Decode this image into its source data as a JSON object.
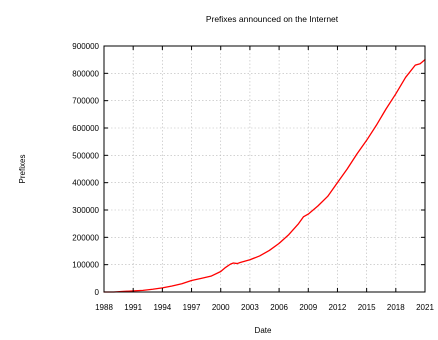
{
  "colors": {
    "series": "#ff0000",
    "frame": "#000000",
    "grid": "#b8b8b8"
  },
  "chart_data": {
    "type": "line",
    "title": "Prefixes announced on the Internet",
    "xlabel": "Date",
    "ylabel": "Prefixes",
    "xlim": [
      1988,
      2021
    ],
    "ylim": [
      0,
      900000
    ],
    "grid": true,
    "x_ticks": [
      1988,
      1991,
      1994,
      1997,
      2000,
      2003,
      2006,
      2009,
      2012,
      2015,
      2018,
      2021
    ],
    "x_tick_labels": [
      "1988",
      "1991",
      "1994",
      "1997",
      "2000",
      "2003",
      "2006",
      "2009",
      "2012",
      "2015",
      "2018",
      "2021"
    ],
    "y_ticks": [
      0,
      100000,
      200000,
      300000,
      400000,
      500000,
      600000,
      700000,
      800000,
      900000
    ],
    "y_tick_labels": [
      "0",
      "100000",
      "200000",
      "300000",
      "400000",
      "500000",
      "600000",
      "700000",
      "800000",
      "900000"
    ],
    "series": [
      {
        "color": "#ff0000",
        "x": [
          1988,
          1989,
          1990,
          1991,
          1992,
          1993,
          1994,
          1995,
          1996,
          1997,
          1998,
          1999,
          2000,
          2000.5,
          2001,
          2001.3,
          2001.7,
          2002,
          2003,
          2004,
          2005,
          2006,
          2007,
          2008,
          2008.5,
          2009,
          2010,
          2011,
          2012,
          2013,
          2014,
          2015,
          2016,
          2017,
          2018,
          2019,
          2020,
          2020.5,
          2021
        ],
        "y": [
          0,
          0,
          2000,
          4000,
          6000,
          10000,
          15000,
          22000,
          30000,
          42000,
          50000,
          58000,
          75000,
          90000,
          102000,
          106000,
          104000,
          108000,
          118000,
          132000,
          152000,
          178000,
          210000,
          250000,
          275000,
          285000,
          315000,
          350000,
          400000,
          450000,
          505000,
          555000,
          610000,
          670000,
          725000,
          785000,
          830000,
          835000,
          850000
        ]
      }
    ]
  }
}
